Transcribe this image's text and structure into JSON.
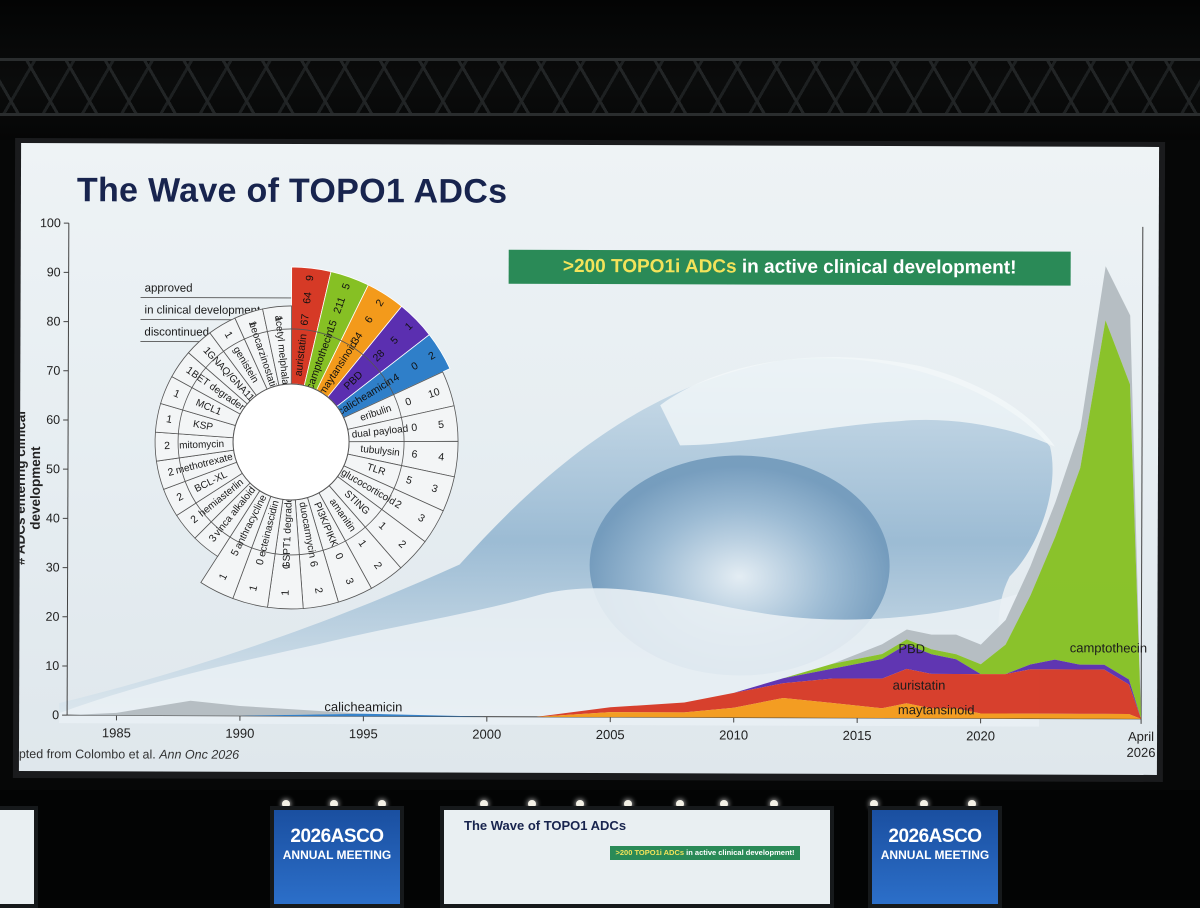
{
  "slide": {
    "title": "The Wave of TOPO1 ADCs",
    "callout_highlight": ">200 TOPO1i ADCs",
    "callout_rest": " in active clinical development!",
    "credit_prefix": "dapted from Colombo et al. ",
    "credit_journal": "Ann Onc 2026"
  },
  "event": {
    "year_brand": "2026ASCO",
    "meeting": "ANNUAL MEETING"
  },
  "chart_data": [
    {
      "type": "area",
      "ylabel": "# ADCs entering clinical development",
      "ylim": [
        0,
        100
      ],
      "yticks": [
        0,
        10,
        20,
        30,
        40,
        50,
        60,
        70,
        80,
        90,
        100
      ],
      "xlim": [
        1983,
        2026.5
      ],
      "xticks": [
        "1985",
        "1990",
        "1995",
        "2000",
        "2005",
        "2010",
        "2015",
        "2020"
      ],
      "x_end_label": [
        "April",
        "2026"
      ],
      "x": [
        1983,
        1985,
        1988,
        1990,
        1995,
        2000,
        2002,
        2005,
        2008,
        2010,
        2012,
        2014,
        2016,
        2017,
        2018,
        2019,
        2020,
        2021,
        2022,
        2023,
        2024,
        2025,
        2026,
        2026.5
      ],
      "series": [
        {
          "name": "maytansinoid",
          "color": "#f39a1b",
          "values": [
            0,
            0,
            0,
            0,
            0,
            0,
            0,
            1,
            1,
            2,
            4,
            3,
            2,
            3,
            2,
            2,
            1,
            1,
            1,
            1,
            1,
            1,
            1,
            0
          ]
        },
        {
          "name": "auristatin",
          "color": "#d63a26",
          "values": [
            0,
            0,
            0,
            0,
            0,
            0,
            0,
            1,
            2,
            3,
            3,
            5,
            6,
            7,
            7,
            7,
            8,
            8,
            9,
            9,
            9,
            9,
            6,
            0
          ]
        },
        {
          "name": "PBD",
          "color": "#5b2fb0",
          "values": [
            0,
            0,
            0,
            0,
            0,
            0,
            0,
            0,
            0,
            0,
            1,
            2,
            4,
            5,
            4,
            3,
            0,
            0,
            1,
            2,
            1,
            1,
            1,
            0
          ]
        },
        {
          "name": "camptothecin",
          "color": "#86c024",
          "values": [
            0,
            0,
            0,
            0,
            0,
            0,
            0,
            0,
            0,
            0,
            0,
            1,
            1,
            1,
            1,
            1,
            2,
            6,
            14,
            25,
            40,
            70,
            60,
            0
          ]
        },
        {
          "name": "calicheamicin",
          "color": "#2f7fc9",
          "values": [
            0,
            0,
            0,
            0,
            0.5,
            0,
            0,
            0,
            0,
            0,
            0,
            0,
            0,
            0,
            0,
            0,
            0,
            0,
            0,
            0,
            0,
            0,
            0,
            0
          ]
        },
        {
          "name": "other",
          "color": "#b4bcc1",
          "values": [
            0,
            0.5,
            3,
            2,
            0,
            0,
            0,
            0,
            0,
            0,
            0,
            0,
            2,
            2,
            3,
            4,
            4,
            5,
            6,
            7,
            8,
            11,
            14,
            0
          ]
        }
      ],
      "series_labels": [
        "camptothecin",
        "PBD",
        "auristatin",
        "maytansinoid",
        "calicheamicin"
      ]
    },
    {
      "type": "table",
      "row_labels": [
        "approved",
        "in clinical development",
        "discontinued"
      ],
      "major_payloads": [
        {
          "name": "auristatin",
          "color": "#d63a26",
          "approved": "9",
          "clinical": "64",
          "discontinued": "67"
        },
        {
          "name": "camptothecin",
          "color": "#86c024",
          "approved": "5",
          "clinical": "211",
          "discontinued": "15"
        },
        {
          "name": "maytansinoid",
          "color": "#f39a1b",
          "approved": "2",
          "clinical": "6",
          "discontinued": "34"
        },
        {
          "name": "PBD",
          "color": "#5b2fb0",
          "approved": "1",
          "clinical": "5",
          "discontinued": "28"
        },
        {
          "name": "calicheamicin",
          "color": "#2f7fc9",
          "approved": "2",
          "clinical": "0",
          "discontinued": "4"
        }
      ],
      "minor_payloads": [
        {
          "name": "eribulin",
          "inner": "0",
          "outer": "10"
        },
        {
          "name": "dual payload",
          "inner": "0",
          "outer": "5"
        },
        {
          "name": "tubulysin",
          "inner": "6",
          "outer": "4"
        },
        {
          "name": "TLR",
          "inner": "5",
          "outer": "3"
        },
        {
          "name": "glucocorticoid",
          "inner": "2",
          "outer": "3"
        },
        {
          "name": "STING",
          "inner": "1",
          "outer": "2"
        },
        {
          "name": "amanitin",
          "inner": "1",
          "outer": "2"
        },
        {
          "name": "PI3K/PIKK",
          "inner": "0",
          "outer": "3"
        },
        {
          "name": "duocarmycin",
          "inner": "6",
          "outer": "2"
        },
        {
          "name": "GSPT1 degrader",
          "inner": "1",
          "outer": "1"
        },
        {
          "name": "ecteinascidin",
          "inner": "0",
          "outer": "1"
        },
        {
          "name": "anthracycline",
          "inner": "5",
          "outer": "1"
        },
        {
          "name": "vinca alkaloid",
          "inner": "3",
          "outer": ""
        },
        {
          "name": "hemiasterlin",
          "inner": "2",
          "outer": ""
        },
        {
          "name": "BCL-XL",
          "inner": "2",
          "outer": ""
        },
        {
          "name": "methotrexate",
          "inner": "2",
          "outer": ""
        },
        {
          "name": "mitomycin",
          "inner": "2",
          "outer": ""
        },
        {
          "name": "KSP",
          "inner": "1",
          "outer": ""
        },
        {
          "name": "MCL1",
          "inner": "1",
          "outer": ""
        },
        {
          "name": "BET degrader",
          "inner": "1",
          "outer": ""
        },
        {
          "name": "GNAQ/GNA11",
          "inner": "1",
          "outer": ""
        },
        {
          "name": "genistein",
          "inner": "1",
          "outer": ""
        },
        {
          "name": "neocarzinostatin",
          "inner": "1",
          "outer": ""
        },
        {
          "name": "acetyl melphalan",
          "inner": "1",
          "outer": ""
        }
      ]
    }
  ],
  "mini_slide": {
    "title": "The Wave of TOPO1 ADCs",
    "callout_highlight": ">200 TOPO1i ADCs",
    "callout_rest": " in active clinical development!"
  }
}
